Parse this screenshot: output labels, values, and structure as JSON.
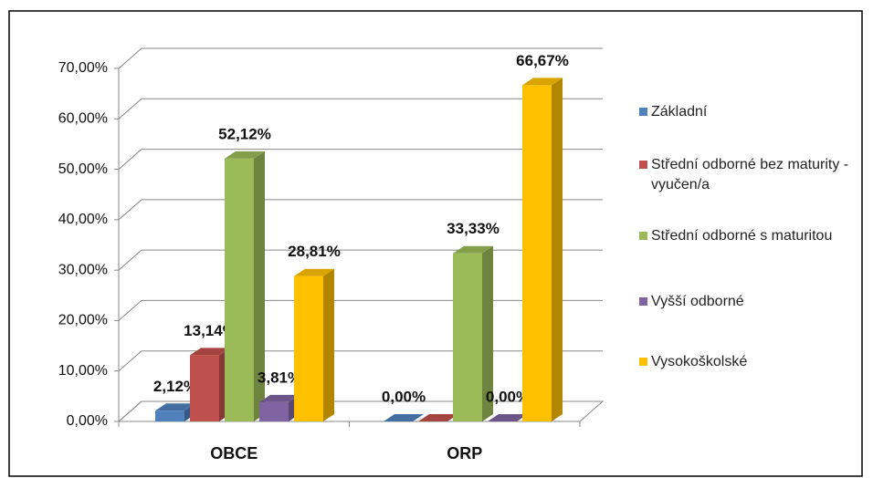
{
  "chart_data": {
    "type": "bar3d",
    "categories": [
      "OBCE",
      "ORP"
    ],
    "series": [
      {
        "name": "Základní",
        "color": "#4f81bd",
        "values": [
          2.12,
          0
        ],
        "value_labels": [
          "2,12%",
          "0,00%"
        ]
      },
      {
        "name": "Střední odborné bez maturity - vyučen/a",
        "color": "#c0504d",
        "values": [
          13.14,
          0
        ],
        "value_labels": [
          "13,14%",
          null
        ]
      },
      {
        "name": "Střední odborné s maturitou",
        "color": "#9bbb59",
        "values": [
          52.12,
          33.33
        ],
        "value_labels": [
          "52,12%",
          "33,33%"
        ]
      },
      {
        "name": "Vyšší odborné",
        "color": "#8064a2",
        "values": [
          3.81,
          0
        ],
        "value_labels": [
          "3,81%",
          "0,00%"
        ]
      },
      {
        "name": "Vysokoškolské",
        "color": "#ffc000",
        "values": [
          28.81,
          66.67
        ],
        "value_labels": [
          "28,81%",
          "66,67%"
        ]
      }
    ],
    "ylim": [
      0,
      70
    ],
    "yticks": [
      {
        "value": 0,
        "label": "0,00%"
      },
      {
        "value": 10,
        "label": "10,00%"
      },
      {
        "value": 20,
        "label": "20,00%"
      },
      {
        "value": 30,
        "label": "30,00%"
      },
      {
        "value": 40,
        "label": "40,00%"
      },
      {
        "value": 50,
        "label": "50,00%"
      },
      {
        "value": 60,
        "label": "60,00%"
      },
      {
        "value": 70,
        "label": "70,00%"
      }
    ],
    "grid": true,
    "legend": "right"
  }
}
